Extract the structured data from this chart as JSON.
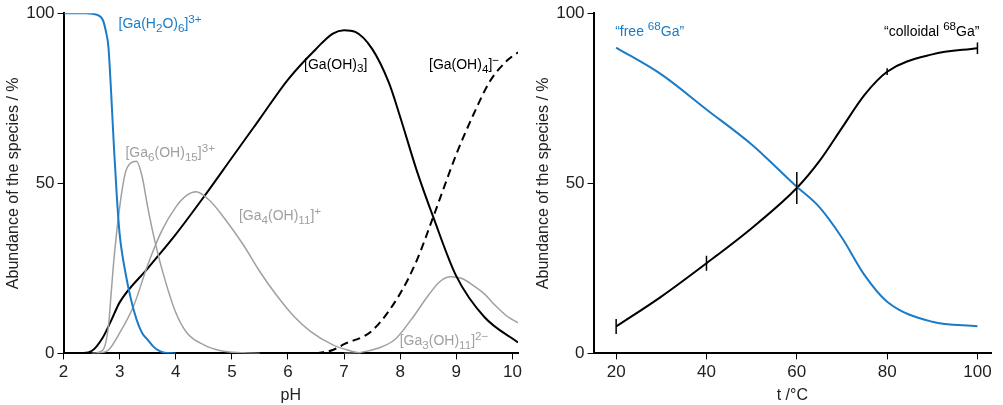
{
  "chart_data": [
    {
      "type": "line",
      "xlabel": "pH",
      "ylabel": "Abundance of the species / %",
      "xlim": [
        2,
        10.1
      ],
      "ylim": [
        0,
        100
      ],
      "xticks": [
        2,
        3,
        4,
        5,
        6,
        7,
        8,
        9,
        10
      ],
      "yticks": [
        0,
        50,
        100
      ],
      "marker": "none",
      "line_style": "solid",
      "series": [
        {
          "name": "[Ga(H$_{2}$O)$_{6}$]$^{3+}$",
          "color": "#1a7cc8",
          "x": [
            2,
            2.4,
            2.6,
            2.7,
            2.75,
            2.8,
            2.85,
            2.9,
            2.95,
            3.0,
            3.1,
            3.2,
            3.3,
            3.4,
            3.5,
            3.6,
            3.7,
            3.8,
            4.0
          ],
          "values": [
            100,
            100,
            99.5,
            98,
            95,
            90,
            76,
            60,
            46,
            35,
            24,
            16,
            10,
            6,
            4,
            2,
            0.8,
            0.2,
            0
          ]
        },
        {
          "name": "[Ga$_{6}$(OH)$_{15}$]$^{3+}$",
          "color": "#a0a0a0",
          "x": [
            2.5,
            2.7,
            2.8,
            2.85,
            2.9,
            3.0,
            3.1,
            3.2,
            3.3,
            3.4,
            3.5,
            3.6,
            3.75,
            4.0,
            4.2,
            4.5,
            4.8,
            5.2,
            5.5
          ],
          "values": [
            0,
            1,
            8,
            18,
            28,
            43,
            53,
            56,
            56.5,
            52,
            43,
            35,
            25,
            12,
            6,
            2.5,
            0.8,
            0.2,
            0
          ]
        },
        {
          "name": "[Ga$_{4}$(OH)$_{11}$]$^{+}$",
          "color": "#a0a0a0",
          "x": [
            2.6,
            2.8,
            3.0,
            3.25,
            3.5,
            3.75,
            4.0,
            4.2,
            4.36,
            4.6,
            4.9,
            5.2,
            5.5,
            5.8,
            6.1,
            6.4,
            6.8,
            7.1,
            7.3
          ],
          "values": [
            0,
            1,
            6,
            14,
            26,
            36,
            43,
            46.5,
            47.5,
            45,
            39,
            32,
            24,
            17,
            11,
            6.5,
            2.5,
            0.8,
            0
          ]
        },
        {
          "name": "[Ga(OH)$_{3}$]",
          "color": "#000000",
          "x": [
            2.3,
            2.5,
            2.7,
            2.85,
            3.0,
            3.5,
            4,
            4.5,
            5,
            5.5,
            6,
            6.5,
            6.8,
            7,
            7.2,
            7.5,
            7.8,
            8,
            8.3,
            8.6,
            9,
            9.5,
            10.1
          ],
          "values": [
            0,
            0.7,
            4.7,
            9.7,
            15,
            25,
            35,
            46,
            57.5,
            69,
            80.5,
            89.5,
            94,
            95,
            94.5,
            89.5,
            79.5,
            69.5,
            53.5,
            39.6,
            22.7,
            10.7,
            3.2
          ]
        },
        {
          "name": "[Ga(OH)$_{4}$]$^{−}$",
          "color": "#000000",
          "line_style": "dashed",
          "x": [
            6.5,
            6.8,
            7,
            7.5,
            8,
            8.3,
            8.6,
            9,
            9.3,
            9.6,
            9.9,
            10.1
          ],
          "values": [
            0,
            1,
            2.7,
            6.7,
            17.6,
            27.5,
            40.6,
            58.5,
            70,
            80,
            86,
            88.5
          ]
        },
        {
          "name": "[Ga$_{3}$(OH)$_{11}$]$^{2−}$",
          "color": "#a0a0a0",
          "x": [
            7.0,
            7.3,
            7.6,
            7.9,
            8.2,
            8.5,
            8.7,
            8.9,
            9.1,
            9.3,
            9.5,
            9.7,
            9.9,
            10.1
          ],
          "values": [
            0,
            0.3,
            1.5,
            4,
            10,
            17,
            21,
            22.5,
            22,
            20,
            17.5,
            14,
            11,
            9
          ]
        }
      ]
    },
    {
      "type": "line",
      "xlabel": "t /°C",
      "ylabel": "Abundance of the species / %",
      "xlim": [
        15,
        103
      ],
      "ylim": [
        0,
        100
      ],
      "xticks": [
        20,
        40,
        60,
        80,
        100
      ],
      "yticks": [
        0,
        50,
        100
      ],
      "marker": "none",
      "line_style": "solid",
      "x": [
        20,
        30,
        40,
        50,
        60,
        65,
        70,
        75,
        80,
        90,
        100
      ],
      "series": [
        {
          "name": "“free $^{68}$Ga”",
          "color": "#1a7cc8",
          "values": [
            89.9,
            82,
            71.7,
            61.4,
            49,
            43,
            34,
            23,
            15.2,
            9.3,
            8
          ]
        },
        {
          "name": "“colloidal $^{68}$Ga”",
          "color": "#000000",
          "values": [
            7.9,
            16.7,
            26.5,
            36.8,
            48.6,
            56.5,
            66.3,
            76,
            82.8,
            87.9,
            89.7
          ],
          "errors": [
            2.2,
            null,
            2.2,
            null,
            4.7,
            null,
            null,
            null,
            1,
            null,
            1.7
          ]
        }
      ]
    }
  ]
}
